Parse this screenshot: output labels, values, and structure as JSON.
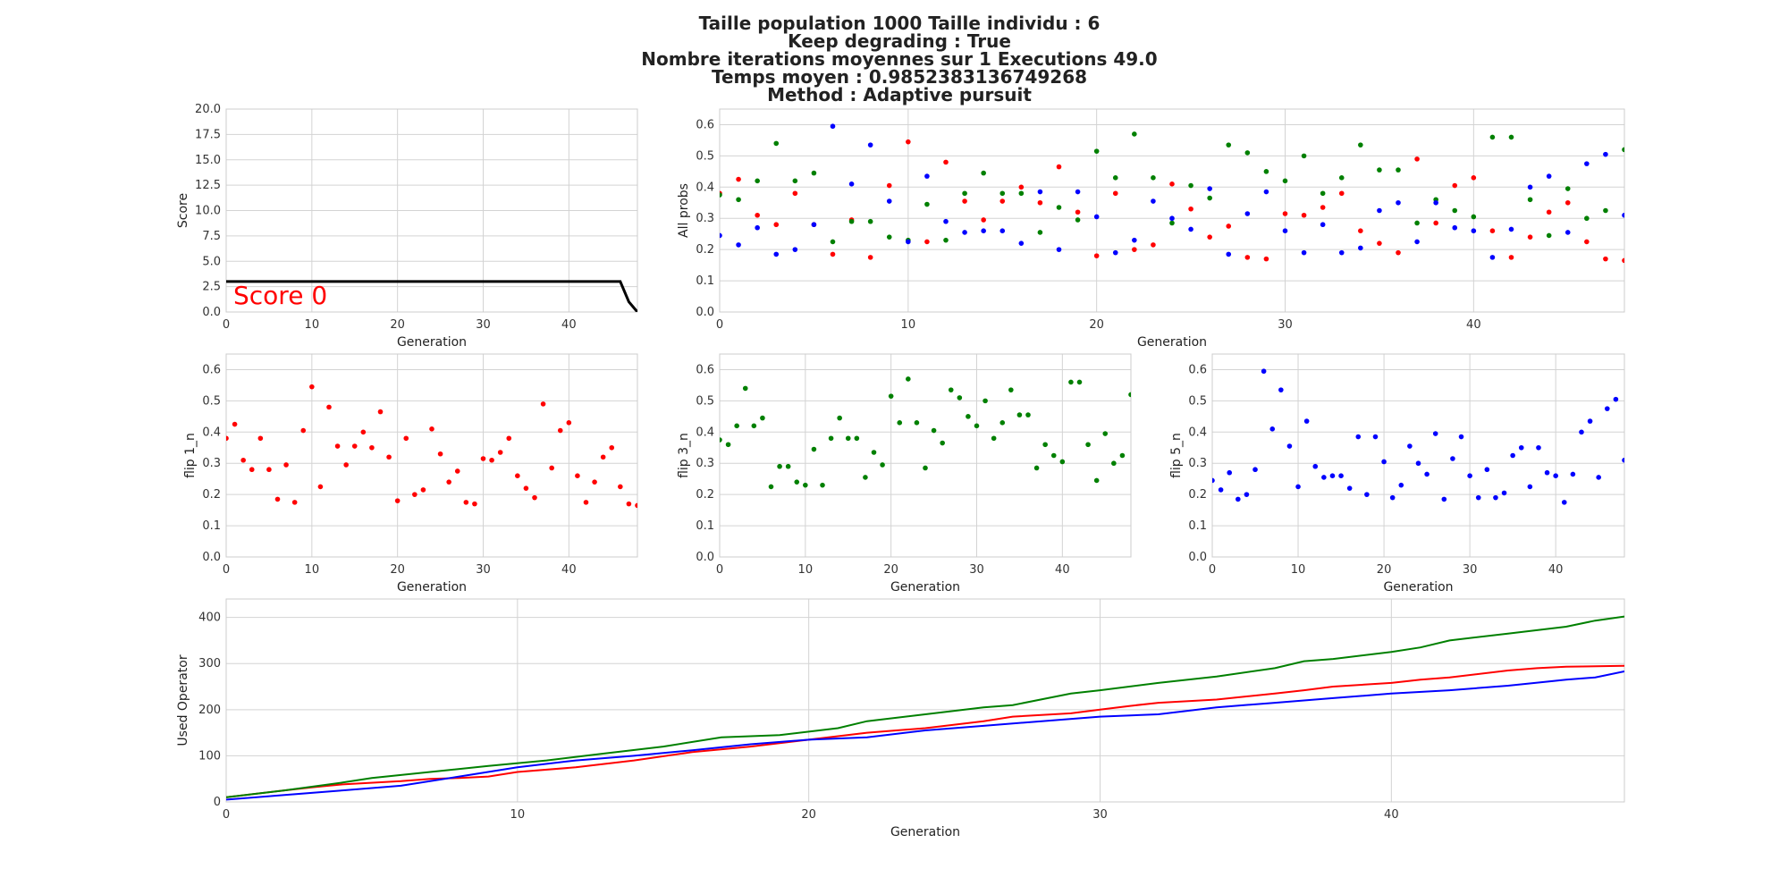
{
  "figure": {
    "title_lines": [
      "Taille population  1000 Taille individu : 6",
      "Keep degrading : True",
      "Nombre iterations moyennes sur 1 Executions 49.0",
      "Temps moyen : 0.9852383136749268",
      "Method : Adaptive pursuit"
    ]
  },
  "chart_data": [
    {
      "id": "score",
      "type": "line",
      "xlabel": "Generation",
      "ylabel": "Score",
      "xlim": [
        0,
        48
      ],
      "ylim": [
        0,
        20
      ],
      "xticks": [
        0,
        10,
        20,
        30,
        40
      ],
      "yticks": [
        0,
        2.5,
        5,
        7.5,
        10,
        12.5,
        15,
        17.5,
        20
      ],
      "ytick_labels": [
        "0.0",
        "2.5",
        "5.0",
        "7.5",
        "10.0",
        "12.5",
        "15.0",
        "17.5",
        "20.0"
      ],
      "annotation": "Score 0",
      "grid": true,
      "series": [
        {
          "color": "#000000",
          "x": [
            0,
            46,
            47,
            48
          ],
          "y": [
            3,
            3,
            1,
            0
          ]
        }
      ]
    },
    {
      "id": "all-probs",
      "type": "scatter",
      "xlabel": "Generation",
      "ylabel": "All probs",
      "xlim": [
        0,
        48
      ],
      "ylim": [
        0,
        0.65
      ],
      "xticks": [
        0,
        10,
        20,
        30,
        40
      ],
      "yticks": [
        0,
        0.1,
        0.2,
        0.3,
        0.4,
        0.5,
        0.6
      ],
      "ytick_labels": [
        "0.0",
        "0.1",
        "0.2",
        "0.3",
        "0.4",
        "0.5",
        "0.6"
      ],
      "grid": true,
      "series": [
        {
          "color": "#ff0000",
          "y": [
            0.38,
            0.425,
            0.31,
            0.28,
            0.38,
            0.28,
            0.185,
            0.295,
            0.175,
            0.405,
            0.545,
            0.225,
            0.48,
            0.355,
            0.295,
            0.355,
            0.4,
            0.35,
            0.465,
            0.32,
            0.18,
            0.38,
            0.2,
            0.215,
            0.41,
            0.33,
            0.24,
            0.275,
            0.175,
            0.17,
            0.315,
            0.31,
            0.335,
            0.38,
            0.26,
            0.22,
            0.19,
            0.49,
            0.285,
            0.405,
            0.43,
            0.26,
            0.175,
            0.24,
            0.32,
            0.35,
            0.225,
            0.17,
            0.165
          ]
        },
        {
          "color": "#008000",
          "y": [
            0.375,
            0.36,
            0.42,
            0.54,
            0.42,
            0.445,
            0.225,
            0.29,
            0.29,
            0.24,
            0.23,
            0.345,
            0.23,
            0.38,
            0.445,
            0.38,
            0.38,
            0.255,
            0.335,
            0.295,
            0.515,
            0.43,
            0.57,
            0.43,
            0.285,
            0.405,
            0.365,
            0.535,
            0.51,
            0.45,
            0.42,
            0.5,
            0.38,
            0.43,
            0.535,
            0.455,
            0.455,
            0.285,
            0.36,
            0.325,
            0.305,
            0.56,
            0.56,
            0.36,
            0.245,
            0.395,
            0.3,
            0.325,
            0.52
          ]
        },
        {
          "color": "#0000ff",
          "y": [
            0.245,
            0.215,
            0.27,
            0.185,
            0.2,
            0.28,
            0.595,
            0.41,
            0.535,
            0.355,
            0.225,
            0.435,
            0.29,
            0.255,
            0.26,
            0.26,
            0.22,
            0.385,
            0.2,
            0.385,
            0.305,
            0.19,
            0.23,
            0.355,
            0.3,
            0.265,
            0.395,
            0.185,
            0.315,
            0.385,
            0.26,
            0.19,
            0.28,
            0.19,
            0.205,
            0.325,
            0.35,
            0.225,
            0.35,
            0.27,
            0.26,
            0.175,
            0.265,
            0.4,
            0.435,
            0.255,
            0.475,
            0.505,
            0.31
          ]
        }
      ]
    },
    {
      "id": "flip1",
      "type": "scatter",
      "xlabel": "Generation",
      "ylabel": "flip 1_n",
      "xlim": [
        0,
        48
      ],
      "ylim": [
        0,
        0.65
      ],
      "xticks": [
        0,
        10,
        20,
        30,
        40
      ],
      "yticks": [
        0,
        0.1,
        0.2,
        0.3,
        0.4,
        0.5,
        0.6
      ],
      "ytick_labels": [
        "0.0",
        "0.1",
        "0.2",
        "0.3",
        "0.4",
        "0.5",
        "0.6"
      ],
      "grid": true,
      "series": [
        {
          "color": "#ff0000",
          "y": [
            0.38,
            0.425,
            0.31,
            0.28,
            0.38,
            0.28,
            0.185,
            0.295,
            0.175,
            0.405,
            0.545,
            0.225,
            0.48,
            0.355,
            0.295,
            0.355,
            0.4,
            0.35,
            0.465,
            0.32,
            0.18,
            0.38,
            0.2,
            0.215,
            0.41,
            0.33,
            0.24,
            0.275,
            0.175,
            0.17,
            0.315,
            0.31,
            0.335,
            0.38,
            0.26,
            0.22,
            0.19,
            0.49,
            0.285,
            0.405,
            0.43,
            0.26,
            0.175,
            0.24,
            0.32,
            0.35,
            0.225,
            0.17,
            0.165
          ]
        }
      ]
    },
    {
      "id": "flip3",
      "type": "scatter",
      "xlabel": "Generation",
      "ylabel": "flip 3_n",
      "xlim": [
        0,
        48
      ],
      "ylim": [
        0,
        0.65
      ],
      "xticks": [
        0,
        10,
        20,
        30,
        40
      ],
      "yticks": [
        0,
        0.1,
        0.2,
        0.3,
        0.4,
        0.5,
        0.6
      ],
      "ytick_labels": [
        "0.0",
        "0.1",
        "0.2",
        "0.3",
        "0.4",
        "0.5",
        "0.6"
      ],
      "grid": true,
      "series": [
        {
          "color": "#008000",
          "y": [
            0.375,
            0.36,
            0.42,
            0.54,
            0.42,
            0.445,
            0.225,
            0.29,
            0.29,
            0.24,
            0.23,
            0.345,
            0.23,
            0.38,
            0.445,
            0.38,
            0.38,
            0.255,
            0.335,
            0.295,
            0.515,
            0.43,
            0.57,
            0.43,
            0.285,
            0.405,
            0.365,
            0.535,
            0.51,
            0.45,
            0.42,
            0.5,
            0.38,
            0.43,
            0.535,
            0.455,
            0.455,
            0.285,
            0.36,
            0.325,
            0.305,
            0.56,
            0.56,
            0.36,
            0.245,
            0.395,
            0.3,
            0.325,
            0.52
          ]
        }
      ]
    },
    {
      "id": "flip5",
      "type": "scatter",
      "xlabel": "Generation",
      "ylabel": "flip 5_n",
      "xlim": [
        0,
        48
      ],
      "ylim": [
        0,
        0.65
      ],
      "xticks": [
        0,
        10,
        20,
        30,
        40
      ],
      "yticks": [
        0,
        0.1,
        0.2,
        0.3,
        0.4,
        0.5,
        0.6
      ],
      "ytick_labels": [
        "0.0",
        "0.1",
        "0.2",
        "0.3",
        "0.4",
        "0.5",
        "0.6"
      ],
      "grid": true,
      "series": [
        {
          "color": "#0000ff",
          "y": [
            0.245,
            0.215,
            0.27,
            0.185,
            0.2,
            0.28,
            0.595,
            0.41,
            0.535,
            0.355,
            0.225,
            0.435,
            0.29,
            0.255,
            0.26,
            0.26,
            0.22,
            0.385,
            0.2,
            0.385,
            0.305,
            0.19,
            0.23,
            0.355,
            0.3,
            0.265,
            0.395,
            0.185,
            0.315,
            0.385,
            0.26,
            0.19,
            0.28,
            0.19,
            0.205,
            0.325,
            0.35,
            0.225,
            0.35,
            0.27,
            0.26,
            0.175,
            0.265,
            0.4,
            0.435,
            0.255,
            0.475,
            0.505,
            0.31
          ]
        }
      ]
    },
    {
      "id": "used-operator",
      "type": "line",
      "xlabel": "Generation",
      "ylabel": "Used Operator",
      "xlim": [
        0,
        48
      ],
      "ylim": [
        0,
        440
      ],
      "xticks": [
        0,
        10,
        20,
        30,
        40
      ],
      "yticks": [
        0,
        100,
        200,
        300,
        400
      ],
      "ytick_labels": [
        "0",
        "100",
        "200",
        "300",
        "400"
      ],
      "grid": true,
      "series": [
        {
          "color": "#ff0000",
          "x": [
            0,
            2,
            3,
            4,
            6,
            7,
            8,
            9,
            10,
            12,
            14,
            16,
            18,
            20,
            22,
            24,
            26,
            27,
            29,
            30,
            31,
            32,
            34,
            36,
            37,
            38,
            40,
            41,
            42,
            44,
            45,
            46,
            48
          ],
          "y": [
            10,
            25,
            32,
            38,
            45,
            50,
            52,
            55,
            65,
            75,
            90,
            108,
            120,
            135,
            150,
            160,
            175,
            185,
            192,
            200,
            208,
            215,
            222,
            235,
            242,
            250,
            258,
            265,
            270,
            285,
            290,
            293,
            295
          ]
        },
        {
          "color": "#008000",
          "x": [
            0,
            2,
            4,
            5,
            7,
            9,
            11,
            13,
            15,
            17,
            19,
            21,
            22,
            24,
            26,
            27,
            29,
            30,
            31,
            32,
            34,
            36,
            37,
            38,
            40,
            41,
            42,
            44,
            46,
            47,
            48
          ],
          "y": [
            10,
            25,
            42,
            52,
            65,
            78,
            90,
            105,
            120,
            140,
            145,
            160,
            175,
            190,
            205,
            210,
            235,
            242,
            250,
            258,
            272,
            290,
            305,
            310,
            325,
            335,
            350,
            365,
            380,
            393,
            402
          ]
        },
        {
          "color": "#0000ff",
          "x": [
            0,
            2,
            4,
            6,
            8,
            10,
            12,
            14,
            16,
            18,
            20,
            22,
            24,
            26,
            28,
            30,
            32,
            34,
            36,
            38,
            40,
            42,
            44,
            46,
            47,
            48
          ],
          "y": [
            5,
            15,
            25,
            35,
            55,
            75,
            90,
            100,
            112,
            125,
            135,
            140,
            155,
            165,
            175,
            185,
            190,
            205,
            215,
            225,
            235,
            242,
            252,
            265,
            270,
            283
          ]
        }
      ]
    }
  ]
}
